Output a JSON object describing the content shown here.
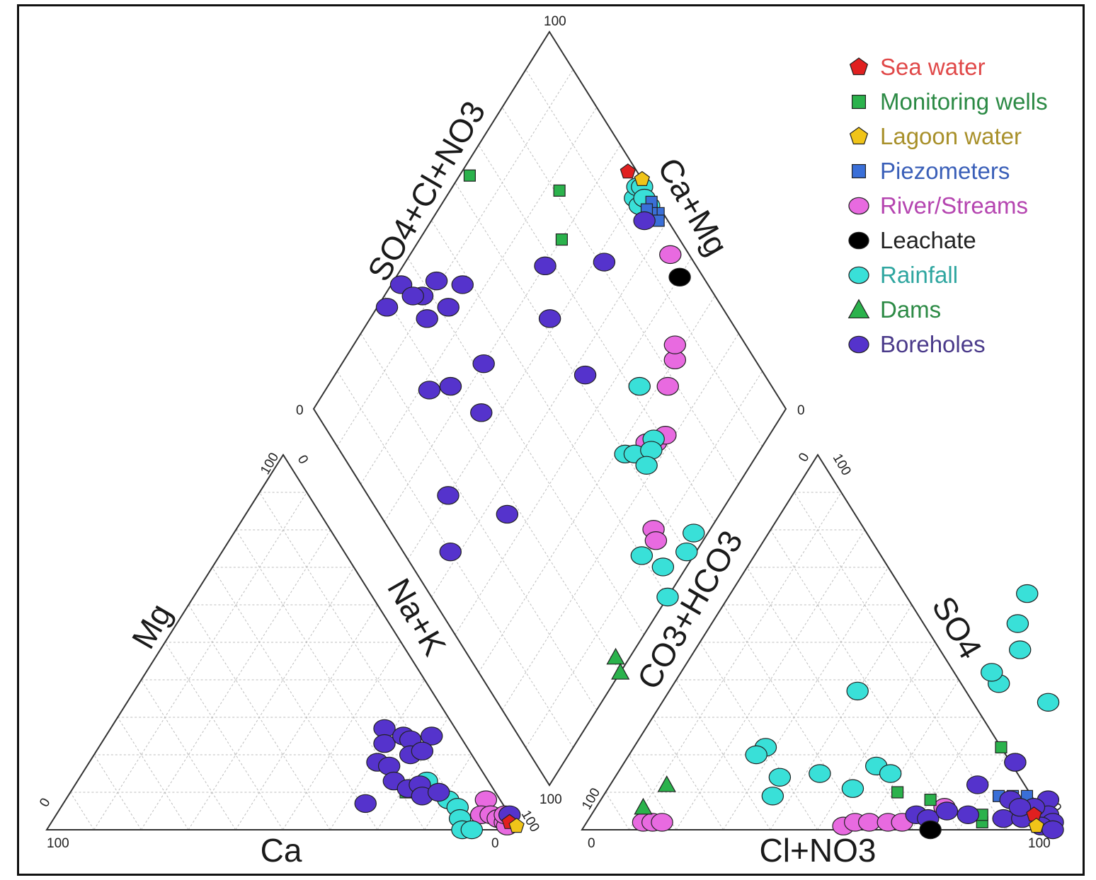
{
  "chart_data": {
    "type": "scatter",
    "subtype": "piper-diagram",
    "title": "",
    "axes": {
      "cation_triangle": {
        "left": "Mg",
        "right": "Na+K",
        "bottom": "Ca"
      },
      "anion_triangle": {
        "left": "CO3+HCO3",
        "right": "SO4",
        "bottom": "Cl+NO3"
      },
      "diamond": {
        "upper_left": "SO4+Cl+NO3",
        "upper_right": "Ca+Mg"
      }
    },
    "ticks": {
      "diamond_top": "100",
      "diamond_left": "0",
      "diamond_right": "0",
      "diamond_bottom": "100",
      "cation_apex_left": "100",
      "cation_apex_right": "0",
      "cation_left": "0",
      "cation_bottom_left": "100",
      "cation_bottom_right": "0",
      "cation_right": "100",
      "anion_apex_left": "0",
      "anion_apex_right": "100",
      "anion_left": "100",
      "anion_bottom_left": "0",
      "anion_bottom_right": "100",
      "anion_right": "0"
    },
    "grid": true,
    "legend_position": "top-right",
    "series": [
      {
        "name": "Sea water",
        "color": "#e02020",
        "marker": "pentagon",
        "cation": [
          [
            0.97,
            0.02
          ]
        ],
        "anion": [
          [
            0.94,
            0.04
          ]
        ],
        "diamond": [
          [
            0.65,
            0.98
          ]
        ]
      },
      {
        "name": "Monitoring wells",
        "color": "#2bb24c",
        "marker": "square",
        "cation": [
          [
            0.72,
            0.1
          ],
          [
            0.71,
            0.1
          ]
        ],
        "anion": [
          [
            0.78,
            0.22
          ],
          [
            0.62,
            0.1
          ],
          [
            0.7,
            0.08
          ],
          [
            0.84,
            0.02
          ],
          [
            0.83,
            0.04
          ]
        ],
        "diamond": [
          [
            0.98,
            0.64
          ],
          [
            0.7,
            0.75
          ],
          [
            0.77,
            0.81
          ]
        ]
      },
      {
        "name": "Lagoon water",
        "color": "#f0c419",
        "marker": "pentagon",
        "cation": [
          [
            0.99,
            0.01
          ]
        ],
        "anion": [
          [
            0.96,
            0.01
          ]
        ],
        "diamond": [
          [
            0.61,
            1.0
          ]
        ]
      },
      {
        "name": "Piezometers",
        "color": "#3a6fd8",
        "marker": "square",
        "cation": [],
        "anion": [
          [
            0.84,
            0.09
          ],
          [
            0.87,
            0.09
          ],
          [
            0.9,
            0.09
          ]
        ],
        "diamond": [
          [
            0.53,
            0.99
          ],
          [
            0.55,
            0.98
          ],
          [
            0.56,
            0.99
          ],
          [
            0.56,
            0.97
          ],
          [
            0.52,
            0.98
          ]
        ]
      },
      {
        "name": "River/Streams",
        "color": "#e86ae0",
        "marker": "circle",
        "cation": [
          [
            0.89,
            0.08
          ],
          [
            0.9,
            0.04
          ],
          [
            0.92,
            0.04
          ],
          [
            0.94,
            0.03
          ],
          [
            0.96,
            0.02
          ],
          [
            0.97,
            0.01
          ],
          [
            0.95,
            0.04
          ]
        ],
        "anion": [
          [
            0.12,
            0.02
          ],
          [
            0.14,
            0.02
          ],
          [
            0.16,
            0.02
          ],
          [
            0.55,
            0.01
          ],
          [
            0.57,
            0.02
          ],
          [
            0.6,
            0.02
          ],
          [
            0.64,
            0.02
          ],
          [
            0.67,
            0.02
          ],
          [
            0.74,
            0.06
          ]
        ],
        "diamond": [
          [
            0.25,
            0.66
          ],
          [
            0.23,
            0.68
          ],
          [
            0.22,
            0.71
          ],
          [
            0.3,
            0.83
          ],
          [
            0.32,
            0.85
          ],
          [
            0.28,
            0.78
          ],
          [
            0.12,
            0.56
          ],
          [
            0.1,
            0.55
          ],
          [
            0.45,
            0.96
          ]
        ]
      },
      {
        "name": "Leachate",
        "color": "#000000",
        "marker": "circle",
        "cation": [],
        "anion": [
          [
            0.74,
            0.0
          ]
        ],
        "diamond": [
          [
            0.4,
            0.95
          ]
        ]
      },
      {
        "name": "Rainfall",
        "color": "#39e0d8",
        "marker": "circle",
        "cation": [
          [
            0.74,
            0.13
          ],
          [
            0.78,
            0.1
          ],
          [
            0.81,
            0.08
          ],
          [
            0.84,
            0.06
          ],
          [
            0.86,
            0.03
          ],
          [
            0.88,
            0.0
          ],
          [
            0.9,
            0.0
          ]
        ],
        "anion": [
          [
            0.63,
            0.63
          ],
          [
            0.65,
            0.55
          ],
          [
            0.69,
            0.48
          ],
          [
            0.69,
            0.39
          ],
          [
            0.66,
            0.42
          ],
          [
            0.82,
            0.34
          ],
          [
            0.83,
            0.18
          ],
          [
            0.4,
            0.37
          ],
          [
            0.28,
            0.22
          ],
          [
            0.27,
            0.2
          ],
          [
            0.35,
            0.14
          ],
          [
            0.43,
            0.15
          ],
          [
            0.36,
            0.09
          ],
          [
            0.52,
            0.11
          ],
          [
            0.54,
            0.17
          ],
          [
            0.58,
            0.15
          ]
        ],
        "diamond": [
          [
            0.6,
            0.96
          ],
          [
            0.61,
            0.98
          ],
          [
            0.6,
            0.99
          ],
          [
            0.56,
            0.98
          ],
          [
            0.58,
            0.96
          ],
          [
            0.58,
            0.98
          ],
          [
            0.34,
            0.72
          ],
          [
            0.28,
            0.6
          ],
          [
            0.26,
            0.62
          ],
          [
            0.24,
            0.68
          ],
          [
            0.23,
            0.66
          ],
          [
            0.22,
            0.63
          ],
          [
            0.11,
            0.5
          ],
          [
            0.05,
            0.53
          ],
          [
            0.02,
            0.6
          ],
          [
            0.03,
            0.64
          ],
          [
            0.0,
            0.5
          ]
        ]
      },
      {
        "name": "Dams",
        "color": "#2bb24c",
        "marker": "triangle",
        "cation": [
          [
            0.73,
            0.12
          ]
        ],
        "anion": [
          [
            0.12,
            0.12
          ],
          [
            0.1,
            0.06
          ]
        ],
        "diamond": [
          [
            0.03,
            0.31
          ],
          [
            0.0,
            0.3
          ]
        ]
      },
      {
        "name": "Boreholes",
        "color": "#5533cc",
        "marker": "circle",
        "cation": [
          [
            0.58,
            0.27
          ],
          [
            0.6,
            0.23
          ],
          [
            0.61,
            0.18
          ],
          [
            0.63,
            0.25
          ],
          [
            0.65,
            0.24
          ],
          [
            0.67,
            0.2
          ],
          [
            0.64,
            0.17
          ],
          [
            0.69,
            0.25
          ],
          [
            0.69,
            0.21
          ],
          [
            0.67,
            0.13
          ],
          [
            0.71,
            0.11
          ],
          [
            0.73,
            0.12
          ],
          [
            0.75,
            0.09
          ],
          [
            0.78,
            0.1
          ],
          [
            0.64,
            0.07
          ],
          [
            0.96,
            0.04
          ]
        ],
        "anion": [
          [
            0.69,
            0.04
          ],
          [
            0.72,
            0.03
          ],
          [
            0.75,
            0.05
          ],
          [
            0.78,
            0.12
          ],
          [
            0.8,
            0.04
          ],
          [
            0.83,
            0.18
          ],
          [
            0.87,
            0.08
          ],
          [
            0.88,
            0.03
          ],
          [
            0.92,
            0.03
          ],
          [
            0.95,
            0.08
          ],
          [
            0.97,
            0.04
          ],
          [
            0.99,
            0.02
          ],
          [
            0.97,
            0.01
          ],
          [
            1.0,
            0.0
          ],
          [
            0.93,
            0.06
          ],
          [
            0.9,
            0.06
          ]
        ],
        "diamond": [
          [
            0.98,
            0.29
          ],
          [
            0.98,
            0.35
          ],
          [
            0.92,
            0.38
          ],
          [
            0.94,
            0.36
          ],
          [
            0.91,
            0.43
          ],
          [
            0.88,
            0.36
          ],
          [
            0.85,
            0.42
          ],
          [
            0.85,
            0.48
          ],
          [
            0.78,
            0.27
          ],
          [
            0.74,
            0.32
          ],
          [
            0.7,
            0.42
          ],
          [
            0.64,
            0.35
          ],
          [
            0.6,
            0.17
          ],
          [
            0.52,
            0.1
          ],
          [
            0.45,
            0.27
          ],
          [
            0.62,
            0.62
          ],
          [
            0.55,
            0.95
          ],
          [
            0.58,
            0.81
          ],
          [
            0.47,
            0.62
          ],
          [
            0.7,
            0.68
          ]
        ]
      }
    ]
  }
}
